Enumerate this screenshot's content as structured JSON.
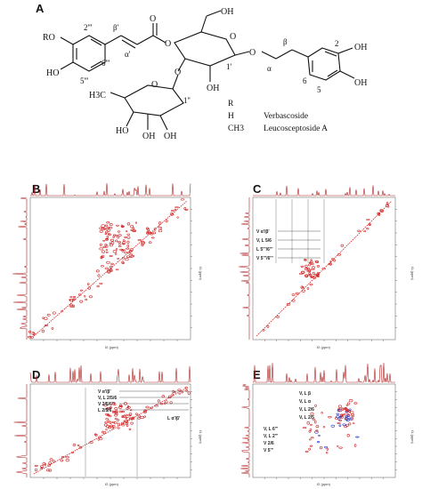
{
  "panels": {
    "a": "A",
    "b": "B",
    "c": "C",
    "d": "D",
    "e": "E"
  },
  "structure": {
    "ro": "RO",
    "h2ppp": "2'''",
    "beta_p": "β'",
    "alpha_p": "α'",
    "h6ppp": "6'''",
    "h5ppp": "5'''",
    "oh1": "OH",
    "oh2": "OH",
    "oh3": "OH",
    "oh4": "OH",
    "oh5": "OH",
    "ho1": "HO",
    "ho2": "HO",
    "h3c": "H3C",
    "o_ester": "O",
    "o_ring": "O",
    "o_gly": "O",
    "o_rha": "O",
    "o_rha2": "O",
    "o_link": "O",
    "h1p": "1'",
    "h1pp": "1''",
    "alpha": "α",
    "beta": "β",
    "n2": "2",
    "n5": "5",
    "n6": "6"
  },
  "legend": {
    "r_header": "R",
    "rows": [
      {
        "r": "H",
        "name": "Verbascoside"
      },
      {
        "r": "CH3",
        "name": "Leucosceptoside A"
      }
    ]
  },
  "spectra": {
    "c": {
      "labels": [
        "V α'/β'",
        "V, L 5/6",
        "L 5'''/6'''",
        "V 5'''/6'''"
      ],
      "axis_ppm": "f1 (ppm)",
      "axis_ppm2": "f2 (ppm)"
    },
    "d": {
      "labels": [
        "V α'/β'",
        "V, L 2/5/6",
        "V 2/5/6'''",
        "L 2/5/6",
        "L α'/β'"
      ],
      "axis_ppm": "f1 (ppm)",
      "axis_ppm2": "f2 (ppm)"
    },
    "e": {
      "labels": [
        "V, L β",
        "V, L α",
        "V, L 2/6",
        "V, L 2/5",
        "V, L 6'''",
        "V, L 2'''",
        "V 2/6",
        "V 5'''"
      ],
      "axis_ppm": "f1 (ppm)",
      "axis_ppm2": "f2 (ppm)"
    }
  }
}
